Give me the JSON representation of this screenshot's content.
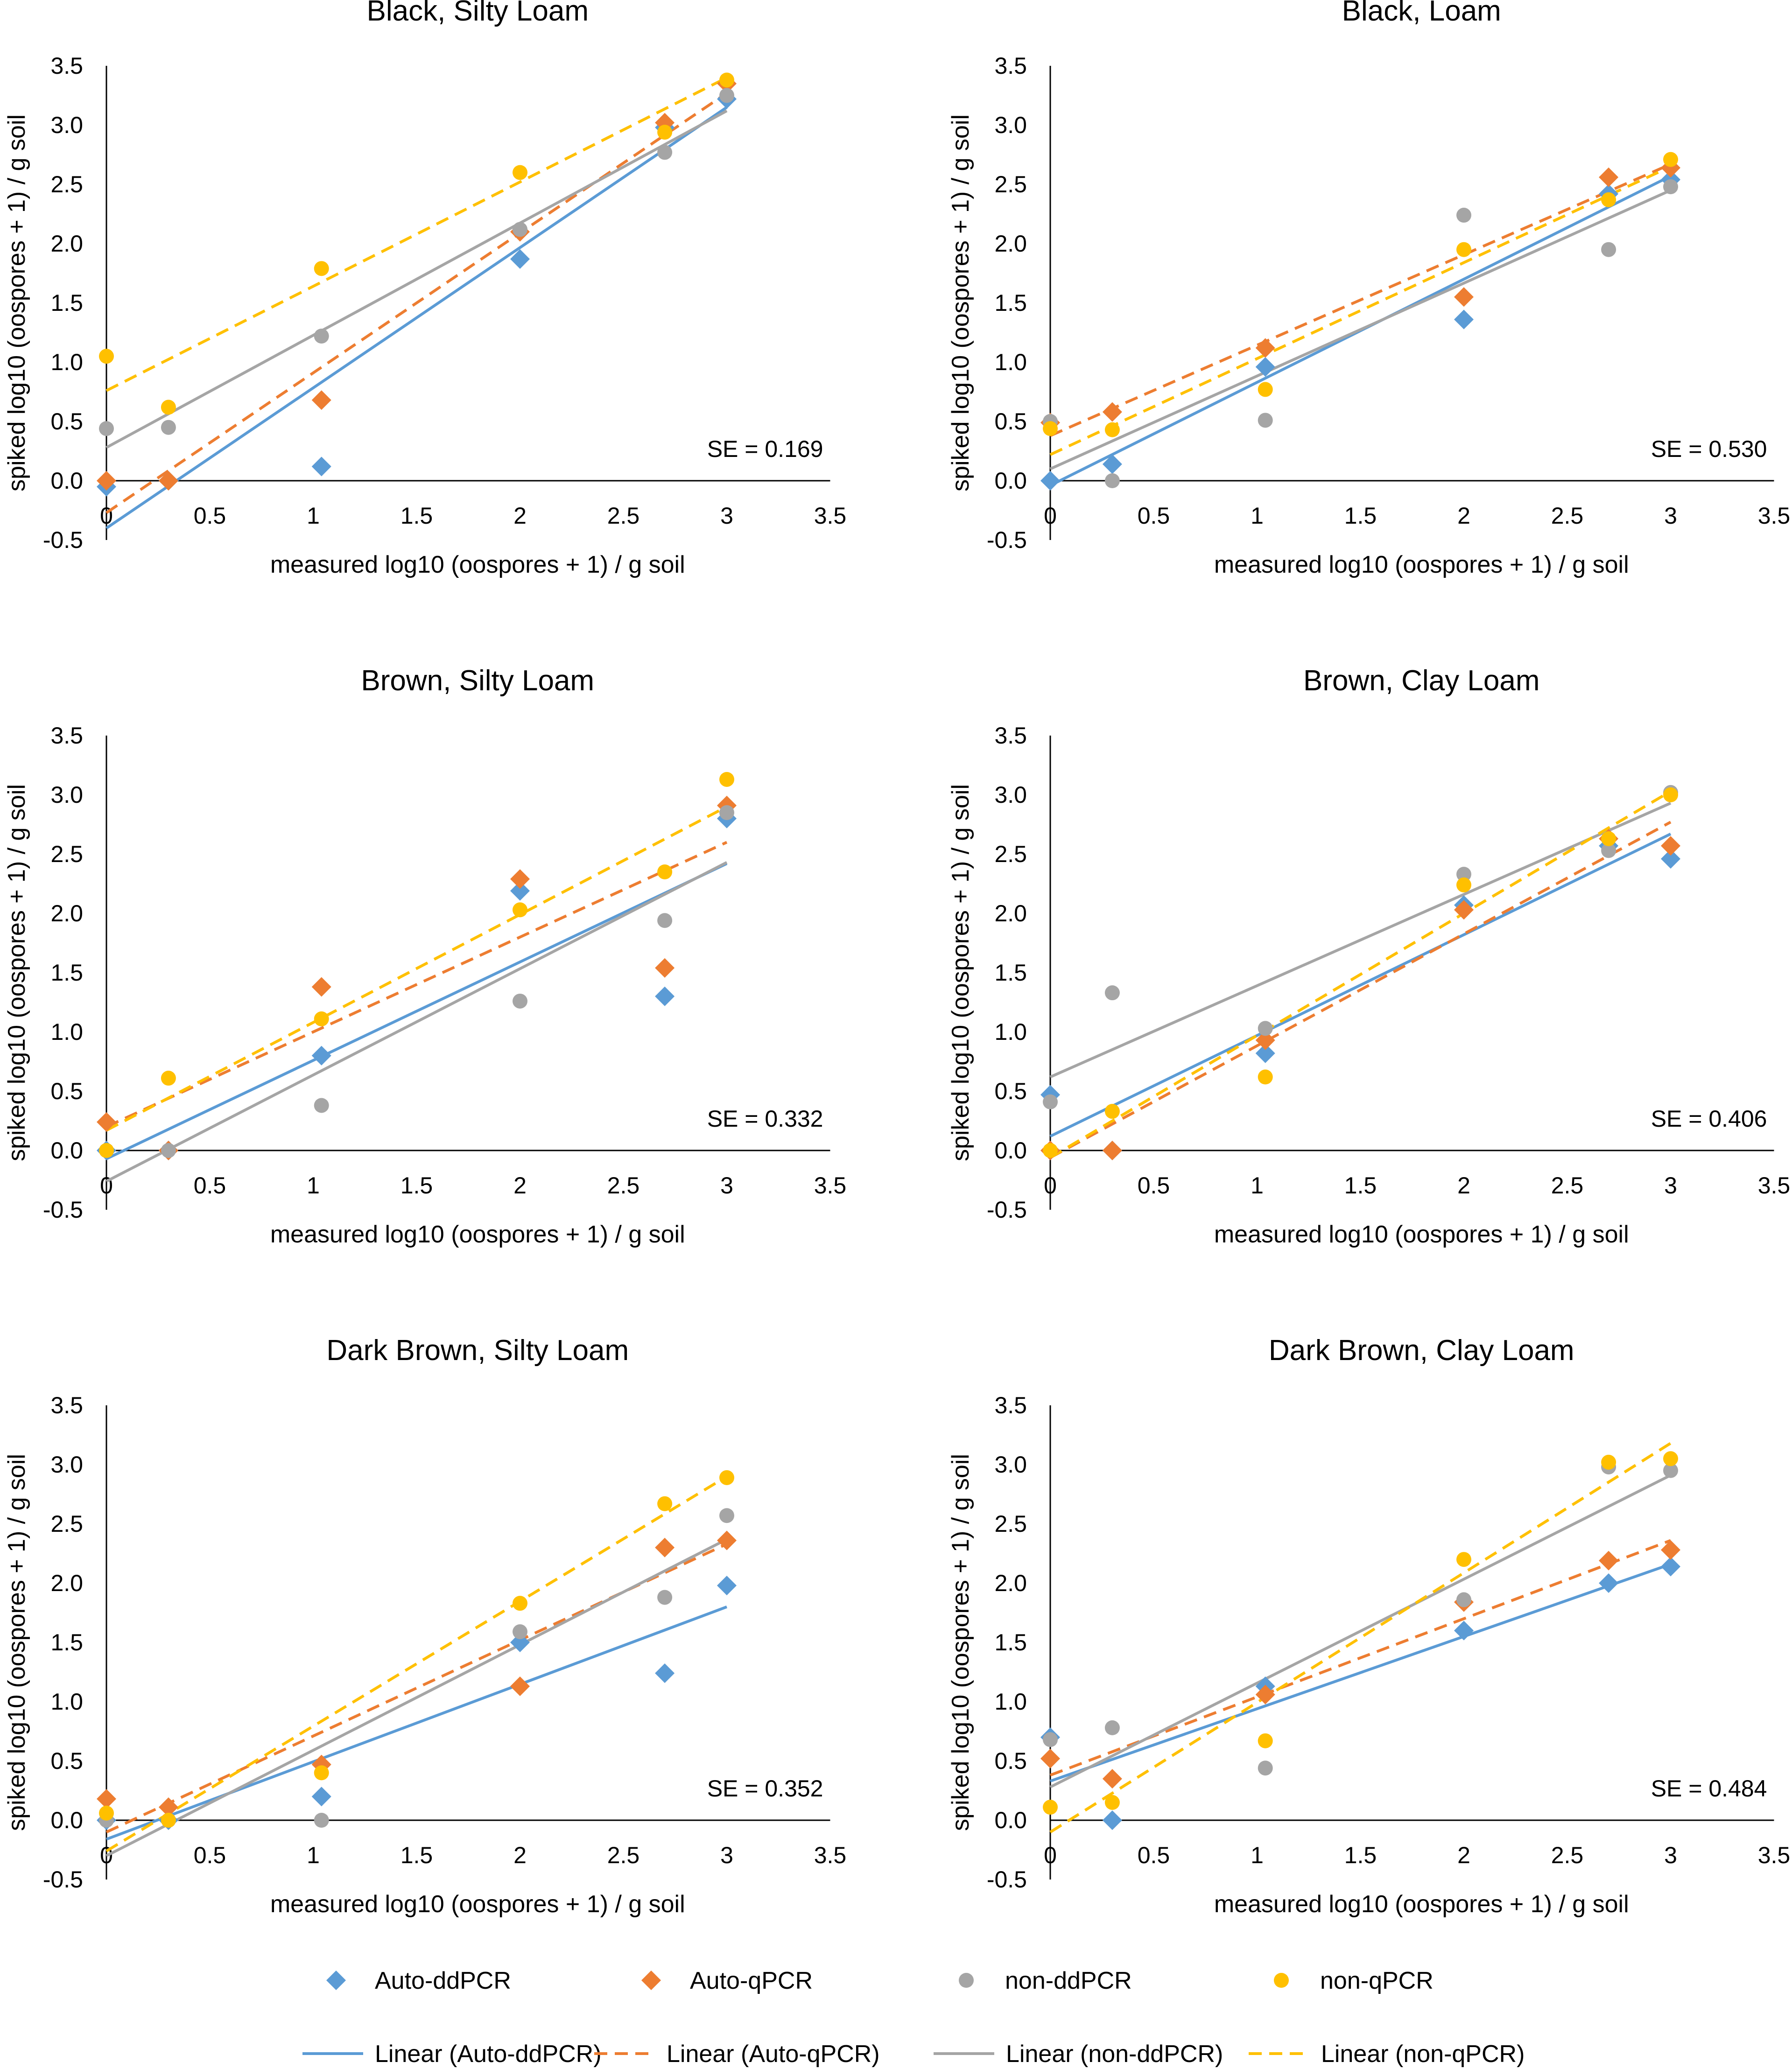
{
  "figure": {
    "legend": {
      "markers": [
        {
          "label": "Auto-ddPCR",
          "series": "auto_ddpcr"
        },
        {
          "label": "Auto-qPCR",
          "series": "auto_qpcr"
        },
        {
          "label": "non-ddPCR",
          "series": "non_ddpcr"
        },
        {
          "label": "non-qPCR",
          "series": "non_qpcr"
        }
      ],
      "lines": [
        {
          "label": "Linear (Auto-ddPCR)",
          "series": "auto_ddpcr"
        },
        {
          "label": "Linear (Auto-qPCR)",
          "series": "auto_qpcr"
        },
        {
          "label": "Linear (non-ddPCR)",
          "series": "non_ddpcr"
        },
        {
          "label": "Linear (non-qPCR)",
          "series": "non_qpcr"
        }
      ]
    }
  },
  "styles": {
    "auto_ddpcr": {
      "color": "#5B9BD5",
      "marker": "diamond",
      "dash": "solid"
    },
    "auto_qpcr": {
      "color": "#ED7D31",
      "marker": "diamond",
      "dash": "dashed"
    },
    "non_ddpcr": {
      "color": "#A5A5A5",
      "marker": "circle",
      "dash": "solid"
    },
    "non_qpcr": {
      "color": "#FFC000",
      "marker": "circle",
      "dash": "dashed"
    }
  },
  "chart_data": [
    {
      "type": "scatter",
      "title": "Black, Silty Loam",
      "xlabel": "measured log10 (oospores + 1) / g soil",
      "ylabel": "spiked log10 (oospores + 1) / g soil",
      "xlim": [
        0,
        3.5
      ],
      "ylim": [
        -0.5,
        3.5
      ],
      "xticks": [
        "0",
        "0.5",
        "1",
        "1.5",
        "2",
        "2.5",
        "3",
        "3.5"
      ],
      "yticks": [
        "-0.5",
        "0.0",
        "0.5",
        "1.0",
        "1.5",
        "2.0",
        "2.5",
        "3.0",
        "3.5"
      ],
      "annotation": "SE = 0.169",
      "x": [
        0,
        0.3,
        1.04,
        2,
        2.7,
        3
      ],
      "series": [
        {
          "key": "auto_ddpcr",
          "name": "Auto-ddPCR",
          "values": [
            -0.05,
            0.0,
            0.12,
            1.87,
            2.98,
            3.22
          ],
          "fit": [
            -0.4,
            3.15
          ]
        },
        {
          "key": "auto_qpcr",
          "name": "Auto-qPCR",
          "values": [
            0.0,
            0.0,
            0.68,
            2.1,
            3.02,
            3.35
          ],
          "fit": [
            -0.27,
            3.27
          ]
        },
        {
          "key": "non_ddpcr",
          "name": "non-ddPCR",
          "values": [
            0.44,
            0.45,
            1.22,
            2.12,
            2.77,
            3.25
          ],
          "fit": [
            0.28,
            3.12
          ]
        },
        {
          "key": "non_qpcr",
          "name": "non-qPCR",
          "values": [
            1.05,
            0.62,
            1.79,
            2.6,
            2.94,
            3.38
          ],
          "fit": [
            0.76,
            3.4
          ]
        }
      ]
    },
    {
      "type": "scatter",
      "title": "Black, Loam",
      "xlabel": "measured log10 (oospores + 1) / g soil",
      "ylabel": "spiked log10 (oospores + 1) / g soil",
      "xlim": [
        0,
        3.5
      ],
      "ylim": [
        -0.5,
        3.5
      ],
      "xticks": [
        "0",
        "0.5",
        "1",
        "1.5",
        "2",
        "2.5",
        "3",
        "3.5"
      ],
      "yticks": [
        "-0.5",
        "0.0",
        "0.5",
        "1.0",
        "1.5",
        "2.0",
        "2.5",
        "3.0",
        "3.5"
      ],
      "annotation": "SE = 0.530",
      "x": [
        0,
        0.3,
        1.04,
        2,
        2.7,
        3
      ],
      "series": [
        {
          "key": "auto_ddpcr",
          "name": "Auto-ddPCR",
          "values": [
            0.0,
            0.14,
            0.96,
            1.36,
            2.42,
            2.54
          ],
          "fit": [
            -0.04,
            2.57
          ]
        },
        {
          "key": "auto_qpcr",
          "name": "Auto-qPCR",
          "values": [
            0.49,
            0.58,
            1.12,
            1.55,
            2.56,
            2.64
          ],
          "fit": [
            0.38,
            2.67
          ]
        },
        {
          "key": "non_ddpcr",
          "name": "non-ddPCR",
          "values": [
            0.5,
            0.0,
            0.51,
            2.24,
            1.95,
            2.48
          ],
          "fit": [
            0.1,
            2.45
          ]
        },
        {
          "key": "non_qpcr",
          "name": "non-qPCR",
          "values": [
            0.44,
            0.43,
            0.77,
            1.95,
            2.37,
            2.71
          ],
          "fit": [
            0.22,
            2.65
          ]
        }
      ]
    },
    {
      "type": "scatter",
      "title": "Brown, Silty Loam",
      "xlabel": "measured log10 (oospores + 1) / g soil",
      "ylabel": "spiked log10 (oospores + 1) / g soil",
      "xlim": [
        0,
        3.5
      ],
      "ylim": [
        -0.5,
        3.5
      ],
      "xticks": [
        "0",
        "0.5",
        "1",
        "1.5",
        "2",
        "2.5",
        "3",
        "3.5"
      ],
      "yticks": [
        "-0.5",
        "0.0",
        "0.5",
        "1.0",
        "1.5",
        "2.0",
        "2.5",
        "3.0",
        "3.5"
      ],
      "annotation": "SE = 0.332",
      "x": [
        0,
        0.3,
        1.04,
        2,
        2.7,
        3
      ],
      "series": [
        {
          "key": "auto_ddpcr",
          "name": "Auto-ddPCR",
          "values": [
            0.0,
            0.0,
            0.8,
            2.19,
            1.3,
            2.8
          ],
          "fit": [
            -0.07,
            2.42
          ]
        },
        {
          "key": "auto_qpcr",
          "name": "Auto-qPCR",
          "values": [
            0.24,
            0.0,
            1.38,
            2.29,
            1.54,
            2.91
          ],
          "fit": [
            0.2,
            2.6
          ]
        },
        {
          "key": "non_ddpcr",
          "name": "non-ddPCR",
          "values": [
            0.0,
            0.0,
            0.38,
            1.26,
            1.94,
            2.85
          ],
          "fit": [
            -0.26,
            2.43
          ]
        },
        {
          "key": "non_qpcr",
          "name": "non-qPCR",
          "values": [
            0.0,
            0.61,
            1.11,
            2.03,
            2.35,
            3.13
          ],
          "fit": [
            0.17,
            2.9
          ]
        }
      ]
    },
    {
      "type": "scatter",
      "title": "Brown, Clay Loam",
      "xlabel": "measured log10 (oospores + 1) / g soil",
      "ylabel": "spiked log10 (oospores + 1) / g soil",
      "xlim": [
        0,
        3.5
      ],
      "ylim": [
        -0.5,
        3.5
      ],
      "xticks": [
        "0",
        "0.5",
        "1",
        "1.5",
        "2",
        "2.5",
        "3",
        "3.5"
      ],
      "yticks": [
        "-0.5",
        "0.0",
        "0.5",
        "1.0",
        "1.5",
        "2.0",
        "2.5",
        "3.0",
        "3.5"
      ],
      "annotation": "SE = 0.406",
      "x": [
        0,
        0.3,
        1.04,
        2,
        2.7,
        3
      ],
      "series": [
        {
          "key": "auto_ddpcr",
          "name": "Auto-ddPCR",
          "values": [
            0.47,
            0.0,
            0.82,
            2.07,
            2.57,
            2.46
          ],
          "fit": [
            0.12,
            2.67
          ]
        },
        {
          "key": "auto_qpcr",
          "name": "Auto-qPCR",
          "values": [
            0.0,
            0.0,
            0.93,
            2.03,
            2.63,
            2.57
          ],
          "fit": [
            -0.06,
            2.77
          ]
        },
        {
          "key": "non_ddpcr",
          "name": "non-ddPCR",
          "values": [
            0.41,
            1.33,
            1.03,
            2.33,
            2.53,
            3.02
          ],
          "fit": [
            0.62,
            2.93
          ]
        },
        {
          "key": "non_qpcr",
          "name": "non-qPCR",
          "values": [
            0.0,
            0.33,
            0.62,
            2.24,
            2.63,
            3.0
          ],
          "fit": [
            -0.06,
            3.03
          ]
        }
      ]
    },
    {
      "type": "scatter",
      "title": "Dark Brown, Silty Loam",
      "xlabel": "measured log10 (oospores + 1) / g soil",
      "ylabel": "spiked log10 (oospores + 1) / g soil",
      "xlim": [
        0,
        3.5
      ],
      "ylim": [
        -0.5,
        3.5
      ],
      "xticks": [
        "0",
        "0.5",
        "1",
        "1.5",
        "2",
        "2.5",
        "3",
        "3.5"
      ],
      "yticks": [
        "-0.5",
        "0.0",
        "0.5",
        "1.0",
        "1.5",
        "2.0",
        "2.5",
        "3.0",
        "3.5"
      ],
      "annotation": "SE = 0.352",
      "x": [
        0,
        0.3,
        1.04,
        2,
        2.7,
        3
      ],
      "series": [
        {
          "key": "auto_ddpcr",
          "name": "Auto-ddPCR",
          "values": [
            0.0,
            0.0,
            0.2,
            1.5,
            1.24,
            1.98
          ],
          "fit": [
            -0.16,
            1.8
          ]
        },
        {
          "key": "auto_qpcr",
          "name": "Auto-qPCR",
          "values": [
            0.18,
            0.11,
            0.47,
            1.13,
            2.3,
            2.36
          ],
          "fit": [
            -0.1,
            2.33
          ]
        },
        {
          "key": "non_ddpcr",
          "name": "non-ddPCR",
          "values": [
            0.0,
            0.0,
            0.0,
            1.59,
            1.88,
            2.57
          ],
          "fit": [
            -0.3,
            2.37
          ]
        },
        {
          "key": "non_qpcr",
          "name": "non-qPCR",
          "values": [
            0.06,
            0.0,
            0.4,
            1.83,
            2.67,
            2.89
          ],
          "fit": [
            -0.26,
            2.9
          ]
        }
      ]
    },
    {
      "type": "scatter",
      "title": "Dark Brown, Clay Loam",
      "xlabel": "measured log10 (oospores + 1) / g soil",
      "ylabel": "spiked log10 (oospores + 1) / g soil",
      "xlim": [
        0,
        3.5
      ],
      "ylim": [
        -0.5,
        3.5
      ],
      "xticks": [
        "0",
        "0.5",
        "1",
        "1.5",
        "2",
        "2.5",
        "3",
        "3.5"
      ],
      "yticks": [
        "-0.5",
        "0.0",
        "0.5",
        "1.0",
        "1.5",
        "2.0",
        "2.5",
        "3.0",
        "3.5"
      ],
      "annotation": "SE = 0.484",
      "x": [
        0,
        0.3,
        1.04,
        2,
        2.7,
        3
      ],
      "series": [
        {
          "key": "auto_ddpcr",
          "name": "Auto-ddPCR",
          "values": [
            0.7,
            0.0,
            1.13,
            1.6,
            2.0,
            2.14
          ],
          "fit": [
            0.33,
            2.16
          ]
        },
        {
          "key": "auto_qpcr",
          "name": "Auto-qPCR",
          "values": [
            0.52,
            0.35,
            1.06,
            1.84,
            2.19,
            2.28
          ],
          "fit": [
            0.38,
            2.36
          ]
        },
        {
          "key": "non_ddpcr",
          "name": "non-ddPCR",
          "values": [
            0.68,
            0.78,
            0.44,
            1.86,
            2.98,
            2.95
          ],
          "fit": [
            0.28,
            2.91
          ]
        },
        {
          "key": "non_qpcr",
          "name": "non-qPCR",
          "values": [
            0.11,
            0.15,
            0.67,
            2.2,
            3.02,
            3.05
          ],
          "fit": [
            -0.1,
            3.18
          ]
        }
      ]
    }
  ]
}
